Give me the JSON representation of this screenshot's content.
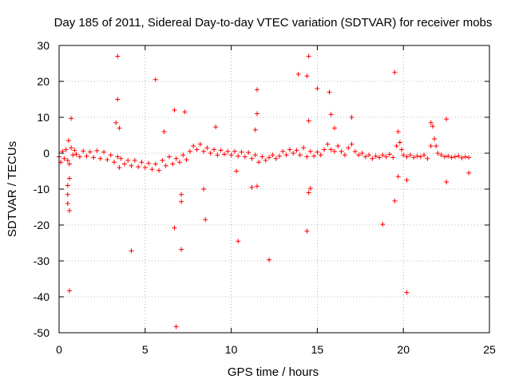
{
  "chart_data": {
    "type": "scatter",
    "title": "Day 185 of 2011, Sidereal Day-to-day VTEC variation (SDTVAR) for receiver mobs",
    "xlabel": "GPS time / hours",
    "ylabel": "SDTVAR / TECUs",
    "xlim": [
      0,
      25
    ],
    "ylim": [
      -50,
      30
    ],
    "grid": true,
    "marker": "+",
    "x_ticks": [
      {
        "value": 0,
        "label": "0"
      },
      {
        "value": 5,
        "label": "5"
      },
      {
        "value": 10,
        "label": "10"
      },
      {
        "value": 15,
        "label": "15"
      },
      {
        "value": 20,
        "label": "20"
      },
      {
        "value": 25,
        "label": "25"
      }
    ],
    "y_ticks": [
      {
        "value": 30,
        "label": "30"
      },
      {
        "value": 20,
        "label": "20"
      },
      {
        "value": 10,
        "label": "10"
      },
      {
        "value": 0,
        "label": "0"
      },
      {
        "value": -10,
        "label": "-10"
      },
      {
        "value": -20,
        "label": "-20"
      },
      {
        "value": -30,
        "label": "-30"
      },
      {
        "value": -40,
        "label": "-40"
      },
      {
        "value": -50,
        "label": "-50"
      }
    ],
    "series": [
      {
        "name": "SDTVAR",
        "color": "#ff0000",
        "points": [
          [
            0.0,
            -1.0
          ],
          [
            0.1,
            -2.5
          ],
          [
            0.2,
            0.5
          ],
          [
            0.3,
            -1.5
          ],
          [
            0.4,
            1.0
          ],
          [
            0.5,
            -2.0
          ],
          [
            0.55,
            3.5
          ],
          [
            0.6,
            -3.0
          ],
          [
            0.7,
            1.5
          ],
          [
            0.8,
            -0.5
          ],
          [
            0.9,
            0.8
          ],
          [
            1.0,
            -0.3
          ],
          [
            1.2,
            -1.0
          ],
          [
            1.4,
            0.6
          ],
          [
            1.6,
            -0.8
          ],
          [
            1.8,
            0.4
          ],
          [
            2.0,
            -1.2
          ],
          [
            2.2,
            0.7
          ],
          [
            2.4,
            -1.5
          ],
          [
            2.6,
            0.3
          ],
          [
            2.8,
            -1.8
          ],
          [
            3.0,
            -0.5
          ],
          [
            3.2,
            -2.5
          ],
          [
            3.4,
            -1.0
          ],
          [
            3.5,
            -4.0
          ],
          [
            3.6,
            -1.5
          ],
          [
            3.8,
            -3.0
          ],
          [
            4.0,
            -2.0
          ],
          [
            4.2,
            -3.5
          ],
          [
            4.4,
            -2.0
          ],
          [
            4.6,
            -3.8
          ],
          [
            4.8,
            -2.5
          ],
          [
            5.0,
            -4.0
          ],
          [
            5.2,
            -2.8
          ],
          [
            5.4,
            -4.5
          ],
          [
            5.6,
            -3.0
          ],
          [
            5.8,
            -4.8
          ],
          [
            6.0,
            -2.0
          ],
          [
            6.2,
            -3.5
          ],
          [
            6.4,
            -1.0
          ],
          [
            6.6,
            -3.0
          ],
          [
            6.8,
            -1.5
          ],
          [
            7.0,
            -2.5
          ],
          [
            7.2,
            -0.5
          ],
          [
            7.4,
            -1.8
          ],
          [
            7.6,
            0.5
          ],
          [
            7.8,
            2.0
          ],
          [
            8.0,
            1.0
          ],
          [
            8.2,
            2.5
          ],
          [
            8.4,
            0.5
          ],
          [
            8.6,
            1.5
          ],
          [
            8.8,
            0.0
          ],
          [
            9.0,
            1.0
          ],
          [
            9.2,
            -0.5
          ],
          [
            9.4,
            0.8
          ],
          [
            9.6,
            -0.3
          ],
          [
            9.8,
            0.5
          ],
          [
            10.0,
            -0.5
          ],
          [
            10.2,
            0.5
          ],
          [
            10.4,
            -0.8
          ],
          [
            10.6,
            0.3
          ],
          [
            10.8,
            -1.0
          ],
          [
            11.0,
            0.2
          ],
          [
            11.2,
            -1.5
          ],
          [
            11.4,
            -0.5
          ],
          [
            11.6,
            -2.5
          ],
          [
            11.8,
            -1.0
          ],
          [
            12.0,
            -2.0
          ],
          [
            12.2,
            -1.2
          ],
          [
            12.4,
            -0.5
          ],
          [
            12.6,
            -1.5
          ],
          [
            12.8,
            -0.8
          ],
          [
            13.0,
            0.5
          ],
          [
            13.2,
            -0.5
          ],
          [
            13.4,
            1.0
          ],
          [
            13.6,
            0.0
          ],
          [
            13.8,
            0.8
          ],
          [
            14.0,
            -0.5
          ],
          [
            14.2,
            1.5
          ],
          [
            14.4,
            -1.0
          ],
          [
            14.6,
            0.5
          ],
          [
            14.8,
            -0.8
          ],
          [
            15.0,
            0.3
          ],
          [
            15.2,
            -0.5
          ],
          [
            15.4,
            1.0
          ],
          [
            15.6,
            2.5
          ],
          [
            15.8,
            1.0
          ],
          [
            16.0,
            0.5
          ],
          [
            16.2,
            2.0
          ],
          [
            16.4,
            0.5
          ],
          [
            16.6,
            -0.5
          ],
          [
            16.8,
            1.5
          ],
          [
            17.0,
            2.5
          ],
          [
            17.2,
            0.5
          ],
          [
            17.4,
            -0.5
          ],
          [
            17.6,
            0.0
          ],
          [
            17.8,
            -1.0
          ],
          [
            18.0,
            -0.5
          ],
          [
            18.2,
            -1.5
          ],
          [
            18.4,
            -0.8
          ],
          [
            18.6,
            -1.2
          ],
          [
            18.8,
            -0.5
          ],
          [
            19.0,
            -1.0
          ],
          [
            19.2,
            -0.3
          ],
          [
            19.4,
            -1.2
          ],
          [
            19.6,
            2.0
          ],
          [
            19.7,
            6.0
          ],
          [
            19.8,
            3.0
          ],
          [
            19.9,
            1.0
          ],
          [
            20.0,
            -0.5
          ],
          [
            20.2,
            -1.0
          ],
          [
            20.4,
            -0.5
          ],
          [
            20.6,
            -1.2
          ],
          [
            20.8,
            -0.8
          ],
          [
            21.0,
            -1.0
          ],
          [
            21.2,
            -0.5
          ],
          [
            21.4,
            -1.5
          ],
          [
            21.6,
            2.0
          ],
          [
            21.7,
            7.5
          ],
          [
            21.8,
            4.0
          ],
          [
            21.9,
            2.0
          ],
          [
            22.0,
            0.0
          ],
          [
            22.2,
            -0.5
          ],
          [
            22.4,
            -1.0
          ],
          [
            22.6,
            -0.8
          ],
          [
            22.8,
            -1.2
          ],
          [
            23.0,
            -1.0
          ],
          [
            23.2,
            -0.8
          ],
          [
            23.4,
            -1.3
          ],
          [
            23.6,
            -1.0
          ],
          [
            23.8,
            -1.2
          ],
          [
            3.4,
            27.0
          ],
          [
            3.4,
            15.0
          ],
          [
            3.5,
            7.0
          ],
          [
            5.6,
            20.5
          ],
          [
            6.7,
            12.0
          ],
          [
            7.3,
            11.5
          ],
          [
            9.1,
            7.3
          ],
          [
            11.5,
            17.7
          ],
          [
            11.5,
            11.0
          ],
          [
            11.4,
            6.5
          ],
          [
            13.9,
            22.0
          ],
          [
            14.4,
            21.5
          ],
          [
            14.5,
            27.0
          ],
          [
            14.5,
            9.0
          ],
          [
            15.0,
            18.0
          ],
          [
            15.7,
            17.0
          ],
          [
            15.8,
            10.8
          ],
          [
            17.0,
            10.0
          ],
          [
            19.5,
            22.5
          ],
          [
            0.7,
            9.7
          ],
          [
            0.5,
            -9.0
          ],
          [
            0.5,
            -11.5
          ],
          [
            0.5,
            -14.0
          ],
          [
            0.6,
            -16.0
          ],
          [
            0.6,
            -38.3
          ],
          [
            0.6,
            -7.0
          ],
          [
            4.2,
            -27.2
          ],
          [
            6.7,
            -20.8
          ],
          [
            6.8,
            -48.3
          ],
          [
            7.1,
            -26.8
          ],
          [
            7.1,
            -13.5
          ],
          [
            7.1,
            -11.5
          ],
          [
            8.4,
            -10.0
          ],
          [
            8.5,
            -18.5
          ],
          [
            10.4,
            -24.5
          ],
          [
            10.3,
            -5.0
          ],
          [
            11.2,
            -9.5
          ],
          [
            11.5,
            -9.2
          ],
          [
            12.2,
            -29.7
          ],
          [
            14.4,
            -21.7
          ],
          [
            14.5,
            -11.0
          ],
          [
            14.6,
            -9.8
          ],
          [
            18.8,
            -19.8
          ],
          [
            19.5,
            -13.3
          ],
          [
            19.7,
            -6.5
          ],
          [
            20.2,
            -38.8
          ],
          [
            20.2,
            -7.5
          ],
          [
            22.5,
            -8.0
          ],
          [
            23.8,
            -5.5
          ],
          [
            22.5,
            9.5
          ],
          [
            21.6,
            8.5
          ],
          [
            16.0,
            7.0
          ],
          [
            3.3,
            8.5
          ],
          [
            6.1,
            6.0
          ]
        ]
      }
    ]
  }
}
